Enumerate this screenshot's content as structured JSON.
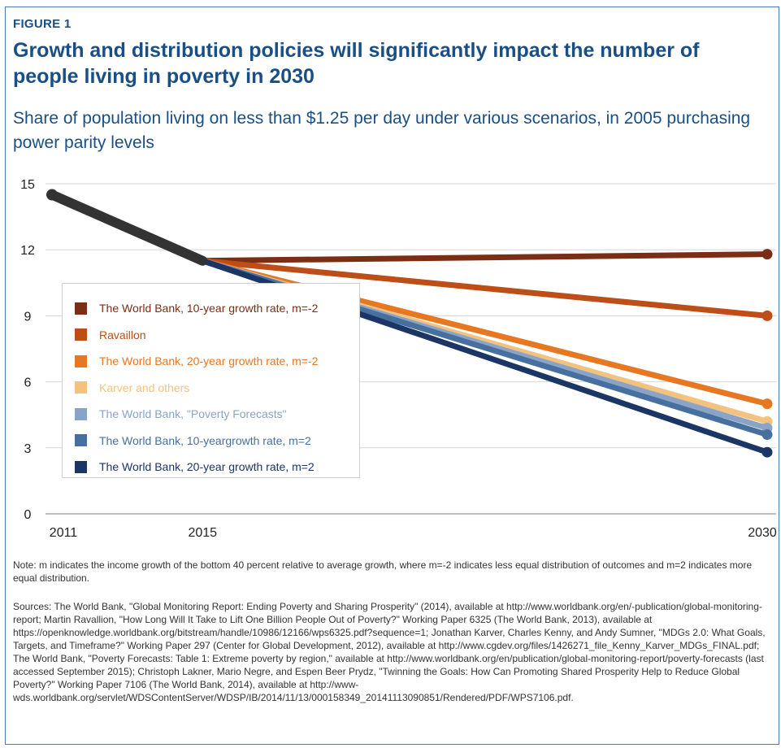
{
  "figure_label": "FIGURE 1",
  "title": "Growth and distribution policies will significantly impact the number of people living in poverty in 2030",
  "subtitle": "Share of population living on less than $1.25 per day under various scenarios, in 2005 purchasing power parity levels",
  "note": "Note: m indicates the income growth of the bottom 40 percent relative to average growth, where m=-2 indicates less equal distribution of outcomes and m=2 indicates more equal distribution.",
  "sources": "Sources: The World Bank, \"Global Monitoring Report: Ending Poverty and Sharing Prosperity\" (2014), available at http://www.worldbank.org/en/-publication/global-monitoring-report; Martin Ravallion, \"How Long Will It Take to Lift One Billion People Out of Poverty?\" Working Paper 6325 (The World Bank, 2013), available at https://openknowledge.worldbank.org/bitstream/handle/10986/12166/wps6325.pdf?sequence=1; Jonathan Karver, Charles Kenny, and Andy Sumner, \"MDGs 2.0: What Goals, Targets, and Timeframe?\" Working Paper 297 (Center for Global Development, 2012), available at http://www.cgdev.org/files/1426271_file_Kenny_Karver_MDGs_FINAL.pdf; The World Bank, \"Poverty Forecasts: Table 1: Extreme poverty by region,\" available at http://www.worldbank.org/en/publication/global-monitoring-report/poverty-forecasts (last accessed September 2015); Christoph Lakner, Mario Negre, and Espen Beer Prydz, \"Twinning the Goals: How Can Promoting Shared Prosperity Help to Reduce Global Poverty?\" Working Paper 7106 (The World Bank, 2014), available at http://www-wds.worldbank.org/servlet/WDSContentServer/WDSP/IB/2014/11/13/000158349_20141113090851/Rendered/PDF/WPS7106.pdf.",
  "chart_data": {
    "type": "line",
    "x": [
      2011,
      2015,
      2030
    ],
    "x_tick_labels": [
      "2011",
      "2015",
      "2030"
    ],
    "y_ticks": [
      0,
      3,
      6,
      9,
      12,
      15
    ],
    "ylim": [
      0,
      15
    ],
    "grid": "horizontal",
    "legend_placement": "center-left",
    "historical": {
      "color": "#333333",
      "points": [
        [
          2011,
          14.5
        ],
        [
          2015,
          11.5
        ]
      ]
    },
    "series": [
      {
        "name": "The World Bank, 10-year growth rate,  m=-2",
        "color": "#7b2e14",
        "points": [
          [
            2015,
            11.5
          ],
          [
            2030,
            11.8
          ]
        ]
      },
      {
        "name": "Ravaillon",
        "color": "#bd4e17",
        "points": [
          [
            2015,
            11.5
          ],
          [
            2030,
            9.0
          ]
        ]
      },
      {
        "name": "The World Bank, 20-year growth rate, m=-2",
        "color": "#e87722",
        "points": [
          [
            2015,
            11.5
          ],
          [
            2030,
            5.0
          ]
        ]
      },
      {
        "name": "Karver and others",
        "color": "#f2c27e",
        "points": [
          [
            2015,
            11.5
          ],
          [
            2030,
            4.2
          ]
        ]
      },
      {
        "name": "The World Bank, \"Poverty Forecasts\"",
        "color": "#8aa4c8",
        "points": [
          [
            2015,
            11.5
          ],
          [
            2030,
            3.9
          ]
        ]
      },
      {
        "name": "The World Bank, 10-yeargrowth rate, m=2",
        "color": "#48709f",
        "points": [
          [
            2015,
            11.5
          ],
          [
            2030,
            3.6
          ]
        ]
      },
      {
        "name": "The World Bank, 20-year growth rate, m=2",
        "color": "#1b3664",
        "points": [
          [
            2015,
            11.5
          ],
          [
            2030,
            2.8
          ]
        ]
      }
    ]
  }
}
